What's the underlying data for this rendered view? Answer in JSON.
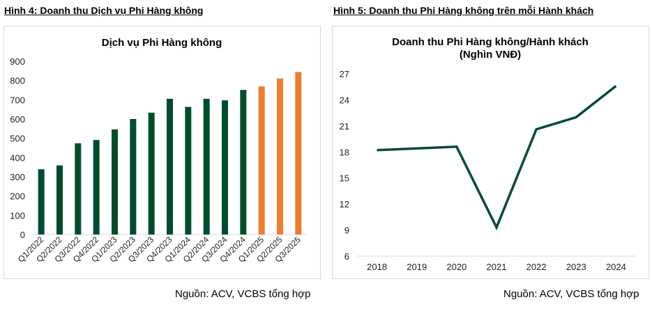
{
  "figures": [
    {
      "caption": "Hình 4: Doanh thu Dịch vụ Phi Hàng không",
      "source": "Nguồn: ACV, VCBS tổng hợp"
    },
    {
      "caption": "Hình 5: Doanh thu Phi Hàng không trên mỗi Hành khách",
      "source": "Nguồn: ACV, VCBS tổng hợp"
    }
  ],
  "chart_data": [
    {
      "type": "bar",
      "title": "Dịch vụ Phi Hàng không",
      "categories": [
        "Q1/2022",
        "Q2/2022",
        "Q3/2022",
        "Q4/2022",
        "Q1/2023",
        "Q2/2023",
        "Q3/2023",
        "Q4/2023",
        "Q1/2024",
        "Q2/2024",
        "Q3/2024",
        "Q4/2024",
        "Q1/2025",
        "Q2/2025",
        "Q3/2025"
      ],
      "values": [
        339,
        359,
        474,
        491,
        546,
        600,
        633,
        705,
        663,
        705,
        697,
        751,
        769,
        810,
        844
      ],
      "bar_colors": [
        "#004d2c",
        "#004d2c",
        "#004d2c",
        "#004d2c",
        "#004d2c",
        "#004d2c",
        "#004d2c",
        "#004d2c",
        "#004d2c",
        "#004d2c",
        "#004d2c",
        "#004d2c",
        "#ed7d31",
        "#ed7d31",
        "#ed7d31"
      ],
      "ylim": [
        0,
        900
      ],
      "yticks": [
        0,
        100,
        200,
        300,
        400,
        500,
        600,
        700,
        800,
        900
      ],
      "grid": false
    },
    {
      "type": "line",
      "title": "Doanh thu Phi Hàng không/Hành khách",
      "subtitle": "(Nghìn VNĐ)",
      "x": [
        "2018",
        "2019",
        "2020",
        "2021",
        "2022",
        "2023",
        "2024"
      ],
      "values": [
        18.2,
        18.4,
        18.6,
        9.3,
        20.6,
        22.0,
        25.6
      ],
      "line_color": "#004d2c",
      "ylim": [
        6,
        27
      ],
      "yticks": [
        6,
        9,
        12,
        15,
        18,
        21,
        24,
        27
      ],
      "grid": false
    }
  ]
}
